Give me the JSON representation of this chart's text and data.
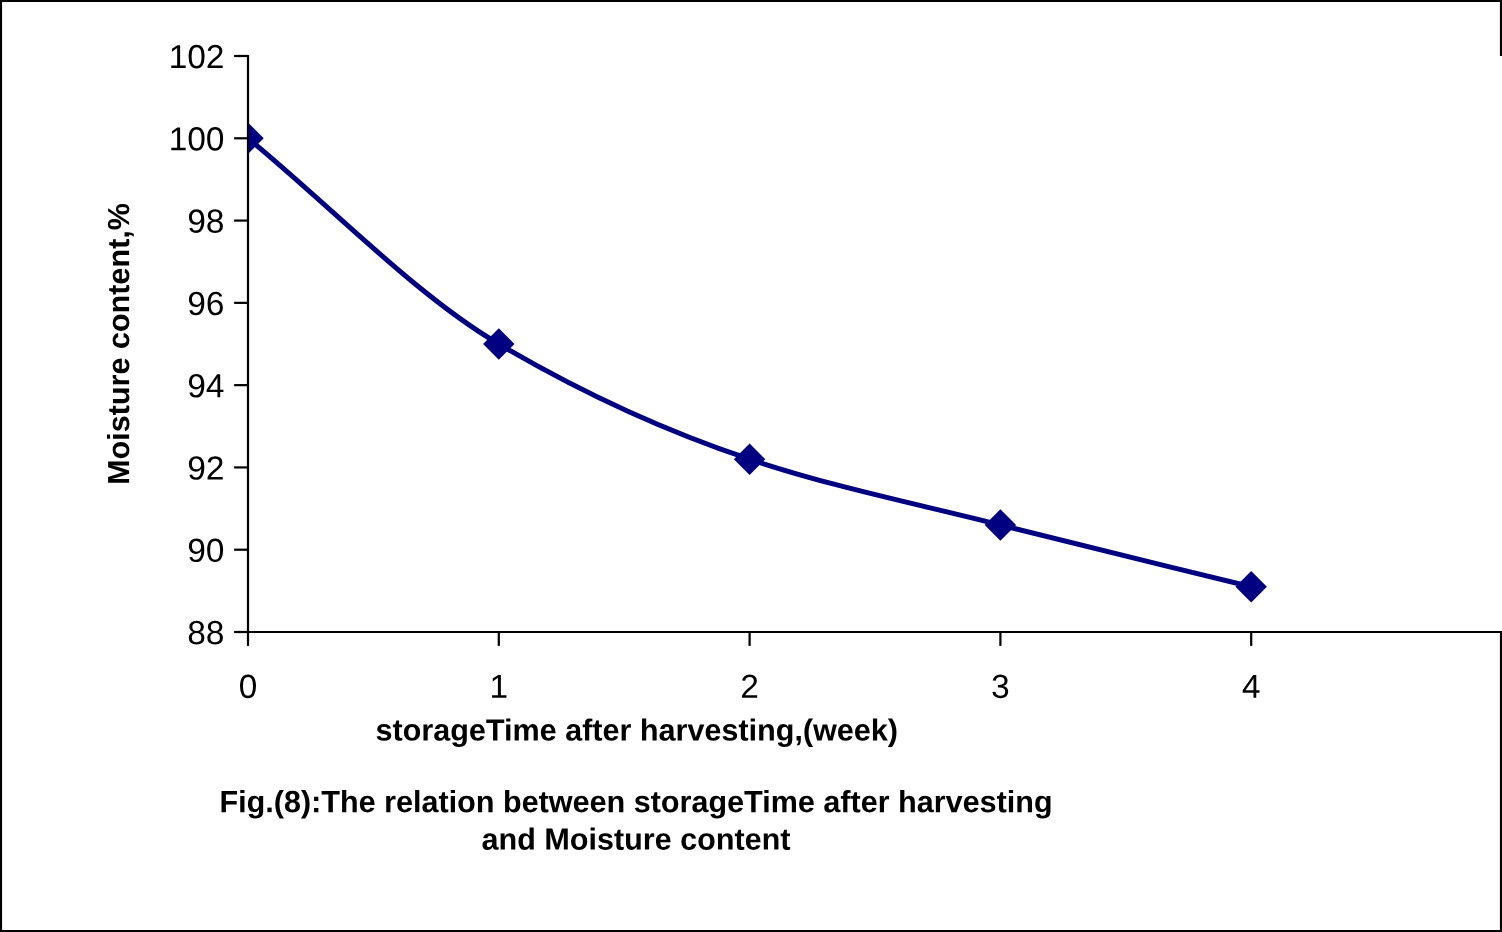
{
  "chart_data": {
    "type": "line",
    "title": "Fig.(8):The relation between storageTime after harvesting\nand Moisture content",
    "xlabel": "storageTime after harvesting,(week)",
    "ylabel": "Moisture content,%",
    "x": [
      0,
      1,
      2,
      3,
      4
    ],
    "series": [
      {
        "color": "#000080",
        "values": [
          100,
          95,
          92.2,
          90.6,
          89.1
        ]
      }
    ],
    "marker": "diamond",
    "line_style": "solid",
    "xlim": [
      0,
      5
    ],
    "xticks": [
      0,
      1,
      2,
      3,
      4
    ],
    "ylim": [
      88,
      102
    ],
    "yticks": [
      88,
      90,
      92,
      94,
      96,
      98,
      100,
      102
    ],
    "grid": false,
    "legend": false
  }
}
